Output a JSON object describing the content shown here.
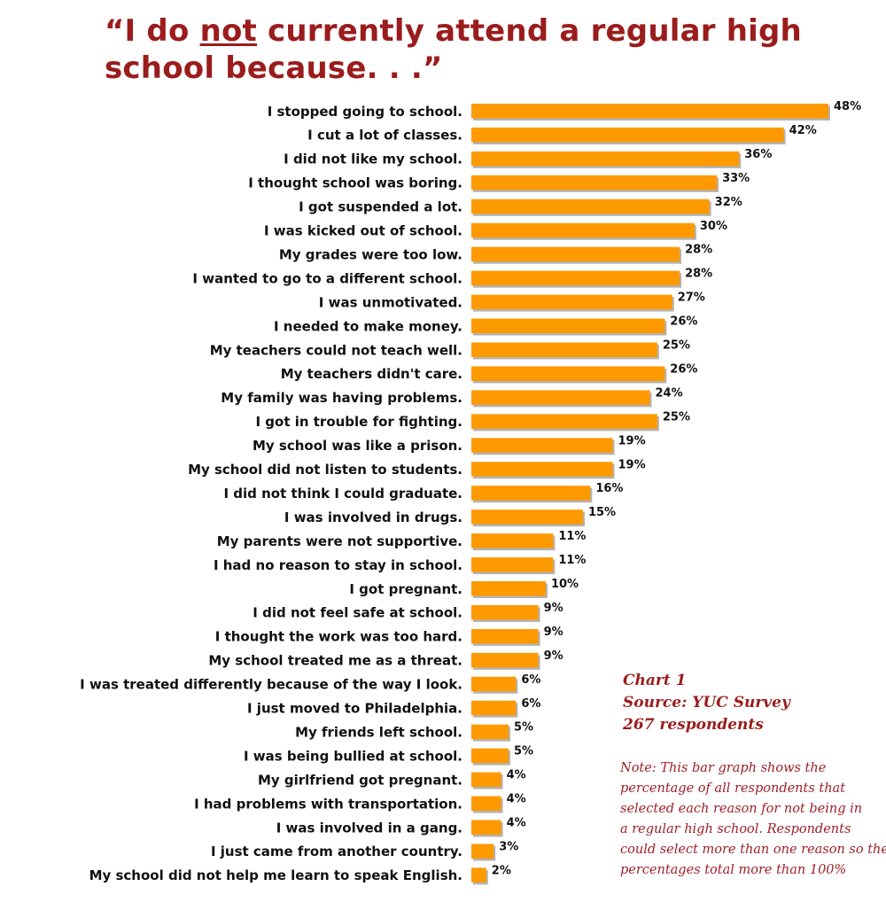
{
  "chart_data": {
    "type": "bar",
    "orientation": "horizontal",
    "title_parts": [
      "“I do ",
      "not",
      " currently attend a regular high school because. . .”"
    ],
    "categories": [
      "I stopped going to school.",
      "I cut a lot of classes.",
      "I did not like my school.",
      "I thought school was boring.",
      "I got suspended a lot.",
      "I was kicked out of school.",
      "My grades were too low.",
      "I wanted to go to a different school.",
      "I was unmotivated.",
      "I needed to make money.",
      "My teachers could not teach well.",
      "My teachers didn't care.",
      "My family was having problems.",
      "I got in trouble for fighting.",
      "My school was like a prison.",
      "My school did not listen to students.",
      "I did not think I could graduate.",
      "I was involved in drugs.",
      "My parents were not supportive.",
      "I had no reason to stay in school.",
      "I got pregnant.",
      "I did not feel safe at school.",
      "I thought the work was too hard.",
      "My school treated me as a threat.",
      "I was treated differently because of the way I look.",
      "I just moved to Philadelphia.",
      "My friends left school.",
      "I was being bullied at school.",
      "My girlfriend got pregnant.",
      "I had problems with transportation.",
      "I was involved in a gang.",
      "I just came from another country.",
      "My school did not help me learn to speak English."
    ],
    "values": [
      48,
      42,
      36,
      33,
      32,
      30,
      28,
      28,
      27,
      26,
      25,
      26,
      24,
      25,
      19,
      19,
      16,
      15,
      11,
      11,
      10,
      9,
      9,
      9,
      6,
      6,
      5,
      5,
      4,
      4,
      4,
      3,
      2
    ],
    "value_labels": [
      "48%",
      "42%",
      "36%",
      "33%",
      "32%",
      "30%",
      "28%",
      "28%",
      "27%",
      "26%",
      "25%",
      "26%",
      "24%",
      "25%",
      "19%",
      "19%",
      "16%",
      "15%",
      "11%",
      "11%",
      "10%",
      "9%",
      "9%",
      "9%",
      "6%",
      "6%",
      "5%",
      "5%",
      "4%",
      "4%",
      "4%",
      "3%",
      "2%"
    ],
    "xlim": [
      0,
      48
    ],
    "grid": false,
    "bar_color": "#ff9900",
    "bar_shadow_color": "#b3b3b3"
  },
  "chart_info": {
    "chart_number": "Chart 1",
    "source": "Source: YUC Survey",
    "respondents": "267 respondents"
  },
  "note_lines": [
    "Note: This bar graph shows the",
    "percentage of  all respondents that",
    "selected each reason for not being in",
    "a regular high school. Respondents",
    "could select more than one reason so the",
    "percentages total more than 100%"
  ],
  "colors": {
    "title": "#9b1c1c",
    "note": "#a0202a"
  }
}
